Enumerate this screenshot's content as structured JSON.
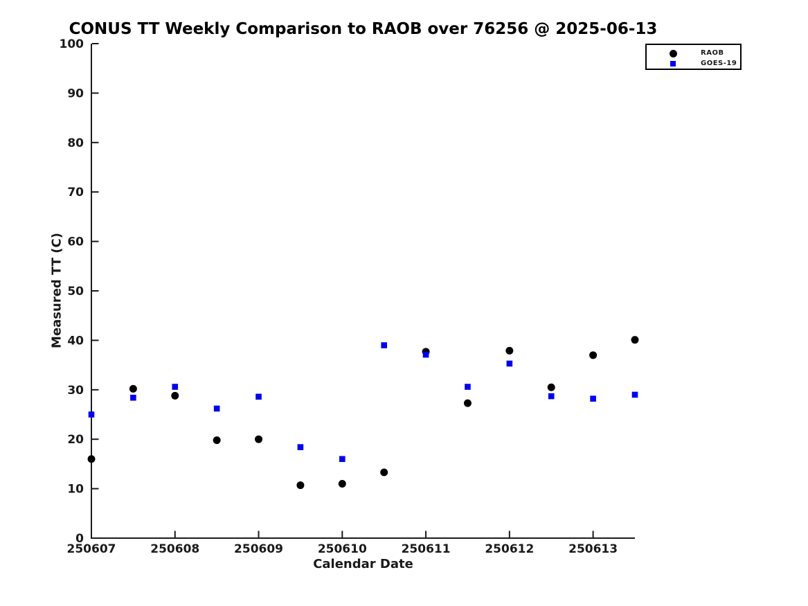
{
  "chart_data": {
    "type": "scatter",
    "title": "CONUS TT Weekly Comparison to RAOB over 76256 @ 2025-06-13",
    "xlabel": "Calendar Date",
    "ylabel": "Measured TT (C)",
    "xlim": [
      250607,
      250613.5
    ],
    "ylim": [
      0,
      100
    ],
    "x_ticks": [
      250607,
      250608,
      250609,
      250610,
      250611,
      250612,
      250613
    ],
    "x_tick_labels": [
      "250607",
      "250608",
      "250609",
      "250610",
      "250611",
      "250612",
      "250613"
    ],
    "y_ticks": [
      0,
      10,
      20,
      30,
      40,
      50,
      60,
      70,
      80,
      90,
      100
    ],
    "grid": false,
    "legend_position": "top-right",
    "axis_color": "#1a1a1a",
    "series": [
      {
        "name": "RAOB",
        "marker": "circle",
        "color": "#000000",
        "x": [
          250607,
          250607.5,
          250608,
          250608.5,
          250609,
          250609.5,
          250610,
          250610.5,
          250611,
          250611.5,
          250612,
          250612.5,
          250613,
          250613.5
        ],
        "y": [
          16.0,
          30.2,
          28.8,
          19.8,
          20.0,
          10.7,
          11.0,
          13.3,
          37.7,
          27.3,
          37.9,
          30.5,
          37.0,
          40.1
        ]
      },
      {
        "name": "GOES-19",
        "marker": "square",
        "color": "#0000ee",
        "x": [
          250607,
          250607.5,
          250608,
          250608.5,
          250609,
          250609.5,
          250610,
          250610.5,
          250611,
          250611.5,
          250612,
          250612.5,
          250613,
          250613.5
        ],
        "y": [
          25.0,
          28.4,
          30.6,
          26.2,
          28.6,
          18.4,
          16.0,
          39.0,
          37.1,
          30.6,
          35.3,
          28.7,
          28.2,
          29.0
        ]
      }
    ]
  }
}
